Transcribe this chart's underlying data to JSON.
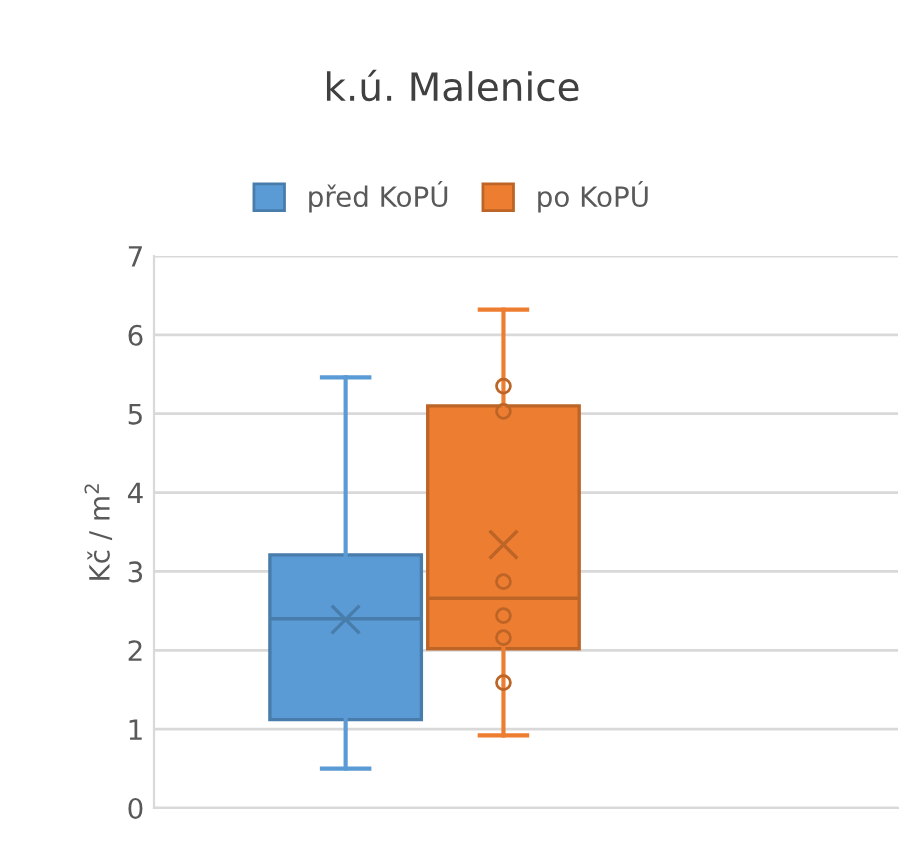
{
  "chart_data": {
    "type": "box",
    "title": "k.ú. Malenice",
    "ylabel": "Kč / m$^{2}$",
    "categories": [
      null
    ],
    "series": [
      {
        "name": "před KoPÚ",
        "color": "#5b9bd5",
        "boxes": [
          {
            "low": 0.5,
            "q1": 1.12,
            "median": 2.4,
            "q3": 3.21,
            "high": 5.46,
            "mean": 2.39
          }
        ]
      },
      {
        "name": "po KoPÚ",
        "color": "#ed7d31",
        "boxes": [
          {
            "low": 0.92,
            "q1": 2.02,
            "median": 2.66,
            "q3": 5.1,
            "high": 6.32,
            "mean": 3.34,
            "outliers": [
              1.59,
              2.16,
              2.44,
              2.87,
              5.03,
              5.35
            ]
          }
        ]
      }
    ],
    "ylim": [
      0,
      7
    ],
    "yticks": [
      0,
      1,
      2,
      3,
      4,
      5,
      6,
      7
    ],
    "grid": "y",
    "legend": "top"
  }
}
